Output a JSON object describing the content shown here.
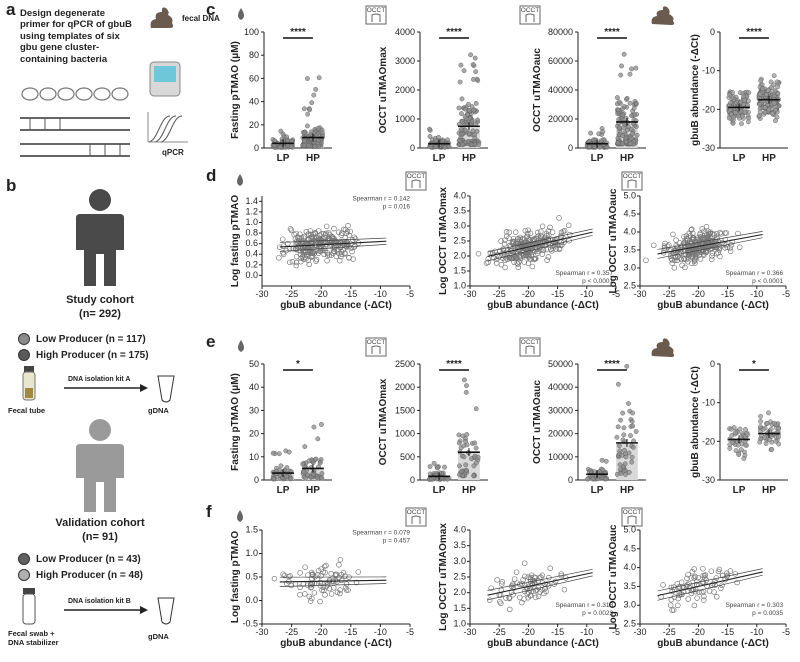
{
  "panel_labels": {
    "a": "a",
    "b": "b",
    "c": "c",
    "d": "d",
    "e": "e",
    "f": "f"
  },
  "panel_a": {
    "description": "Design degenerate primer for qPCR of gbuB using templates of six gbu gene cluster-containing bacteria",
    "fecal_dna_label": "fecal DNA",
    "qpcr_label": "qPCR"
  },
  "panel_b": {
    "study_title": "Study cohort",
    "study_n": "(n= 292)",
    "study_low": "Low Producer (n = 117)",
    "study_high": "High Producer (n = 175)",
    "kit_a": "DNA isolation kit A",
    "fecal_tube": "Fecal tube",
    "gdna_1": "gDNA",
    "validation_title": "Validation cohort",
    "validation_n": "(n= 91)",
    "val_low": "Low Producer (n = 43)",
    "val_high": "High Producer (n = 48)",
    "kit_b": "DNA isolation kit B",
    "fecal_swab": "Fecal swab +\nDNA stabilizer",
    "gdna_2": "gDNA",
    "colors": {
      "low": "#8a8a8a",
      "high": "#5a5a5a",
      "person_dark": "#4a4a4a",
      "person_light": "#9a9a9a"
    }
  },
  "panel_c_icons": {
    "occt": "OCCT"
  },
  "chart_data": [
    {
      "id": "c1",
      "type": "scatter",
      "panel": "c",
      "categories": [
        "LP",
        "HP"
      ],
      "ylabel": "Fasting pTMAO (μM)",
      "ylim": [
        0,
        100
      ],
      "yticks": [
        0,
        20,
        40,
        60,
        80,
        100
      ],
      "means": [
        4,
        9
      ],
      "significance": "****"
    },
    {
      "id": "c2",
      "type": "scatter",
      "panel": "c",
      "categories": [
        "LP",
        "HP"
      ],
      "ylabel": "OCCT uTMAOmax",
      "ylim": [
        0,
        4000
      ],
      "yticks": [
        0,
        1000,
        2000,
        3000,
        4000
      ],
      "means": [
        150,
        750
      ],
      "significance": "****"
    },
    {
      "id": "c3",
      "type": "scatter",
      "panel": "c",
      "categories": [
        "LP",
        "HP"
      ],
      "ylabel": "OCCT uTMAOauc",
      "ylim": [
        0,
        80000
      ],
      "yticks": [
        0,
        20000,
        40000,
        60000,
        80000
      ],
      "means": [
        3000,
        18000
      ],
      "significance": "****"
    },
    {
      "id": "c4",
      "type": "scatter",
      "panel": "c",
      "categories": [
        "LP",
        "HP"
      ],
      "ylabel": "gbuB abundance (-ΔCt)",
      "ylim": [
        -30,
        0
      ],
      "yticks": [
        -30,
        -20,
        -10,
        0
      ],
      "means": [
        -19.5,
        -17.5
      ],
      "significance": "****"
    },
    {
      "id": "d1",
      "type": "scatter",
      "panel": "d",
      "xlabel": "gbuB abundance (-ΔCt)",
      "ylabel": "Log fasting pTMAO",
      "xlim": [
        -30,
        -5
      ],
      "xticks": [
        -30,
        -25,
        -20,
        -15,
        -10,
        -5
      ],
      "ylim": [
        -0.2,
        1.5
      ],
      "yticks": [
        "0.0",
        "0.2",
        "0.4",
        "0.6",
        "0.8",
        "1.0",
        "1.2",
        "1.4"
      ],
      "stat_r": "Spearman r = 0.142",
      "stat_p": "p = 0.016",
      "slope": 0.006,
      "intercept": 0.7
    },
    {
      "id": "d2",
      "type": "scatter",
      "panel": "d",
      "xlabel": "gbuB abundance (-ΔCt)",
      "ylabel": "Log OCCT uTMAOmax",
      "xlim": [
        -30,
        -5
      ],
      "xticks": [
        -30,
        -25,
        -20,
        -15,
        -10,
        -5
      ],
      "ylim": [
        1.0,
        4.0
      ],
      "yticks": [
        "1.0",
        "1.5",
        "2.0",
        "2.5",
        "3.0",
        "3.5",
        "4.0"
      ],
      "stat_r": "Spearman r = 0.357",
      "stat_p": "p < 0.0001",
      "slope": 0.045,
      "intercept": 3.2
    },
    {
      "id": "d3",
      "type": "scatter",
      "panel": "d",
      "xlabel": "gbuB abundance (-ΔCt)",
      "ylabel": "Log OCCT uTMAOauc",
      "xlim": [
        -30,
        -5
      ],
      "xticks": [
        -30,
        -25,
        -20,
        -15,
        -10,
        -5
      ],
      "ylim": [
        2.5,
        5.0
      ],
      "yticks": [
        "2.5",
        "3.0",
        "3.5",
        "4.0",
        "4.5",
        "5.0"
      ],
      "stat_r": "Spearman r = 0.366",
      "stat_p": "p < 0.0001",
      "slope": 0.03,
      "intercept": 4.2
    },
    {
      "id": "e1",
      "type": "scatter",
      "panel": "e",
      "categories": [
        "LP",
        "HP"
      ],
      "ylabel": "Fasting pTMAO (μM)",
      "ylim": [
        0,
        50
      ],
      "yticks": [
        0,
        10,
        20,
        30,
        40,
        50
      ],
      "means": [
        3,
        5
      ],
      "significance": "*"
    },
    {
      "id": "e2",
      "type": "scatter",
      "panel": "e",
      "categories": [
        "LP",
        "HP"
      ],
      "ylabel": "OCCT uTMAOmax",
      "ylim": [
        0,
        2500
      ],
      "yticks": [
        0,
        500,
        1000,
        1500,
        2000,
        2500
      ],
      "means": [
        80,
        600
      ],
      "significance": "****"
    },
    {
      "id": "e3",
      "type": "scatter",
      "panel": "e",
      "categories": [
        "LP",
        "HP"
      ],
      "ylabel": "OCCT uTMAOauc",
      "ylim": [
        0,
        50000
      ],
      "yticks": [
        0,
        10000,
        20000,
        30000,
        40000,
        50000
      ],
      "means": [
        2500,
        16000
      ],
      "significance": "****"
    },
    {
      "id": "e4",
      "type": "scatter",
      "panel": "e",
      "categories": [
        "LP",
        "HP"
      ],
      "ylabel": "gbuB abundance (-ΔCt)",
      "ylim": [
        -30,
        0
      ],
      "yticks": [
        -30,
        -20,
        -10,
        0
      ],
      "means": [
        -19.5,
        -18
      ],
      "significance": "*"
    },
    {
      "id": "f1",
      "type": "scatter",
      "panel": "f",
      "xlabel": "gbuB abundance (-ΔCt)",
      "ylabel": "Log fasting pTMAO",
      "xlim": [
        -30,
        -5
      ],
      "xticks": [
        -30,
        -25,
        -20,
        -15,
        -10,
        -5
      ],
      "ylim": [
        -0.5,
        1.5
      ],
      "yticks": [
        "-0.5",
        "0.0",
        "0.5",
        "1.0",
        "1.5"
      ],
      "stat_r": "Spearman r = 0.079",
      "stat_p": "p = 0.457",
      "slope": 0.002,
      "intercept": 0.45
    },
    {
      "id": "f2",
      "type": "scatter",
      "panel": "f",
      "xlabel": "gbuB abundance (-ΔCt)",
      "ylabel": "Log OCCT uTMAOmax",
      "xlim": [
        -30,
        -5
      ],
      "xticks": [
        -30,
        -25,
        -20,
        -15,
        -10,
        -5
      ],
      "ylim": [
        1.0,
        4.0
      ],
      "yticks": [
        "1.0",
        "1.5",
        "2.0",
        "2.5",
        "3.0",
        "3.5",
        "4.0"
      ],
      "stat_r": "Spearman r = 0.318",
      "stat_p": "p = 0.0023",
      "slope": 0.04,
      "intercept": 3.0
    },
    {
      "id": "f3",
      "type": "scatter",
      "panel": "f",
      "xlabel": "gbuB abundance (-ΔCt)",
      "ylabel": "Log OCCT uTMAOauc",
      "xlim": [
        -30,
        -5
      ],
      "xticks": [
        -30,
        -25,
        -20,
        -15,
        -10,
        -5
      ],
      "ylim": [
        2.5,
        5.0
      ],
      "yticks": [
        "2.5",
        "3.0",
        "3.5",
        "4.0",
        "4.5",
        "5.0"
      ],
      "stat_r": "Spearman r = 0.303",
      "stat_p": "p = 0.0035",
      "slope": 0.035,
      "intercept": 4.2
    }
  ]
}
